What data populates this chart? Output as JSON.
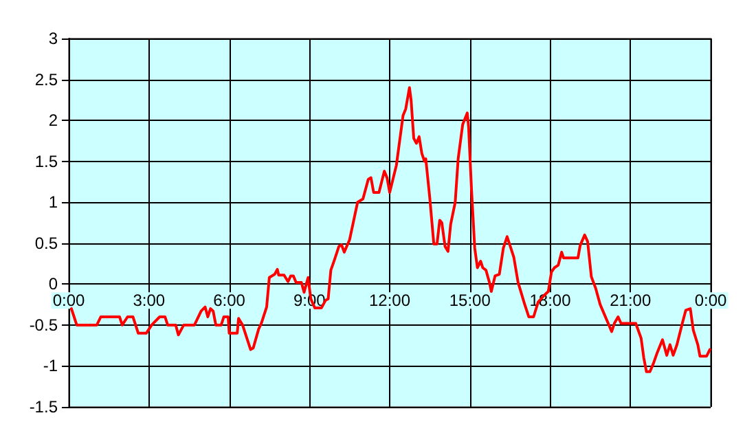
{
  "chart_data": {
    "type": "line",
    "xlim": [
      0,
      24
    ],
    "xticks": [
      {
        "value": 0,
        "label": "0:00"
      },
      {
        "value": 3,
        "label": "3:00"
      },
      {
        "value": 6,
        "label": "6:00"
      },
      {
        "value": 9,
        "label": "9:00"
      },
      {
        "value": 12,
        "label": "12:00"
      },
      {
        "value": 15,
        "label": "15:00"
      },
      {
        "value": 18,
        "label": "18:00"
      },
      {
        "value": 21,
        "label": "21:00"
      },
      {
        "value": 24,
        "label": "0:00"
      }
    ],
    "ylim": [
      -1.5,
      3
    ],
    "yticks": [
      -1.5,
      -1,
      -0.5,
      0,
      0.5,
      1,
      1.5,
      2,
      2.5,
      3
    ],
    "grid": true,
    "marker": "none",
    "line_style": "solid",
    "series": [
      {
        "color": "#ff0000",
        "x": [
          0.1,
          0.3,
          1.05,
          1.2,
          1.9,
          2.0,
          2.2,
          2.4,
          2.6,
          2.9,
          3.1,
          3.4,
          3.6,
          3.7,
          4.0,
          4.1,
          4.3,
          4.7,
          4.95,
          5.1,
          5.2,
          5.3,
          5.4,
          5.5,
          5.7,
          5.8,
          5.96,
          6.0,
          6.3,
          6.35,
          6.5,
          6.8,
          6.9,
          7.1,
          7.2,
          7.4,
          7.5,
          7.7,
          7.8,
          7.85,
          8.05,
          8.2,
          8.3,
          8.4,
          8.5,
          8.7,
          8.8,
          8.95,
          9.05,
          9.2,
          9.45,
          9.6,
          9.7,
          9.8,
          9.95,
          10.1,
          10.2,
          10.3,
          10.5,
          10.8,
          11.0,
          11.2,
          11.3,
          11.4,
          11.6,
          11.8,
          11.9,
          12.0,
          12.25,
          12.5,
          12.6,
          12.74,
          12.8,
          12.9,
          13.0,
          13.1,
          13.2,
          13.3,
          13.35,
          13.5,
          13.65,
          13.77,
          13.87,
          13.95,
          14.07,
          14.18,
          14.28,
          14.45,
          14.56,
          14.73,
          14.9,
          14.95,
          15.06,
          15.18,
          15.28,
          15.4,
          15.48,
          15.6,
          15.73,
          15.8,
          15.94,
          16.1,
          16.25,
          16.39,
          16.5,
          16.64,
          16.8,
          17.05,
          17.2,
          17.38,
          17.55,
          17.77,
          17.93,
          18.05,
          18.16,
          18.3,
          18.43,
          18.5,
          19.04,
          19.12,
          19.29,
          19.4,
          19.54,
          19.7,
          19.87,
          20.04,
          20.17,
          20.3,
          20.4,
          20.54,
          20.65,
          21.2,
          21.4,
          21.5,
          21.6,
          21.73,
          21.86,
          22.0,
          22.2,
          22.36,
          22.48,
          22.6,
          22.74,
          22.94,
          23.07,
          23.24,
          23.35,
          23.52,
          23.6,
          23.85,
          23.97
        ],
        "values": [
          -0.3,
          -0.5,
          -0.5,
          -0.4,
          -0.4,
          -0.5,
          -0.4,
          -0.4,
          -0.6,
          -0.6,
          -0.5,
          -0.4,
          -0.4,
          -0.5,
          -0.5,
          -0.62,
          -0.5,
          -0.5,
          -0.33,
          -0.28,
          -0.4,
          -0.3,
          -0.33,
          -0.5,
          -0.5,
          -0.4,
          -0.4,
          -0.6,
          -0.6,
          -0.42,
          -0.5,
          -0.8,
          -0.78,
          -0.55,
          -0.48,
          -0.28,
          0.08,
          0.12,
          0.18,
          0.11,
          0.11,
          0.03,
          0.1,
          0.1,
          0.02,
          0.02,
          -0.1,
          0.08,
          -0.18,
          -0.29,
          -0.29,
          -0.2,
          -0.18,
          0.17,
          0.31,
          0.46,
          0.48,
          0.39,
          0.54,
          1.0,
          1.04,
          1.28,
          1.3,
          1.12,
          1.12,
          1.38,
          1.3,
          1.12,
          1.45,
          2.06,
          2.14,
          2.4,
          2.25,
          1.78,
          1.72,
          1.8,
          1.6,
          1.5,
          1.53,
          1.05,
          0.49,
          0.49,
          0.78,
          0.75,
          0.46,
          0.4,
          0.73,
          1.0,
          1.53,
          1.95,
          2.09,
          1.92,
          1.15,
          0.44,
          0.2,
          0.28,
          0.2,
          0.17,
          0.02,
          -0.09,
          0.1,
          0.12,
          0.44,
          0.58,
          0.47,
          0.33,
          0.02,
          -0.25,
          -0.4,
          -0.4,
          -0.22,
          -0.14,
          -0.09,
          0.15,
          0.2,
          0.23,
          0.39,
          0.32,
          0.32,
          0.47,
          0.6,
          0.52,
          0.09,
          -0.05,
          -0.25,
          -0.38,
          -0.48,
          -0.58,
          -0.48,
          -0.4,
          -0.48,
          -0.48,
          -0.66,
          -0.9,
          -1.07,
          -1.07,
          -0.97,
          -0.84,
          -0.68,
          -0.87,
          -0.74,
          -0.87,
          -0.74,
          -0.48,
          -0.32,
          -0.3,
          -0.56,
          -0.74,
          -0.88,
          -0.88,
          -0.8
        ]
      }
    ]
  }
}
